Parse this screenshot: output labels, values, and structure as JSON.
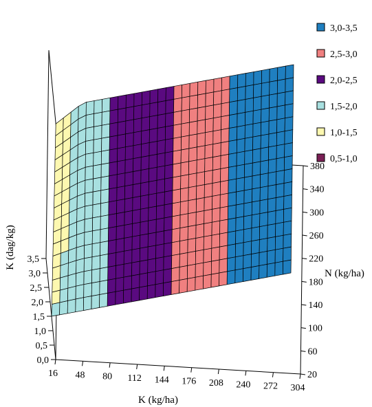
{
  "chart_data": {
    "type": "surface",
    "title": "",
    "zlabel": "K (dag/kg)",
    "xlabel": "K (kg/ha)",
    "ylabel": "N (kg/ha)",
    "z_ticks": [
      "0,0",
      "0,5",
      "1,0",
      "1,5",
      "2,0",
      "2,5",
      "3,0",
      "3,5"
    ],
    "x_ticks": [
      "16",
      "48",
      "80",
      "112",
      "144",
      "176",
      "208",
      "240",
      "272",
      "304"
    ],
    "y_ticks": [
      "20",
      "60",
      "100",
      "140",
      "180",
      "220",
      "260",
      "300",
      "340",
      "380"
    ],
    "zlim": [
      0,
      3.5
    ],
    "xlim": [
      16,
      304
    ],
    "ylim": [
      20,
      380
    ],
    "surface": {
      "z_at_x_min": 1.5,
      "z_at_x_max": 3.5,
      "slope_along_x": 0.00694,
      "slope_along_y": 0.0
    },
    "legend": [
      {
        "label": "3,0-3,5",
        "color": "#1f7fc0"
      },
      {
        "label": "2,5-3,0",
        "color": "#f08080"
      },
      {
        "label": "2,0-2,5",
        "color": "#5a0a80"
      },
      {
        "label": "1,5-2,0",
        "color": "#a8e0e0"
      },
      {
        "label": "1,0-1,5",
        "color": "#fdf8b0"
      },
      {
        "label": "0,5-1,0",
        "color": "#7a1f55"
      }
    ]
  }
}
